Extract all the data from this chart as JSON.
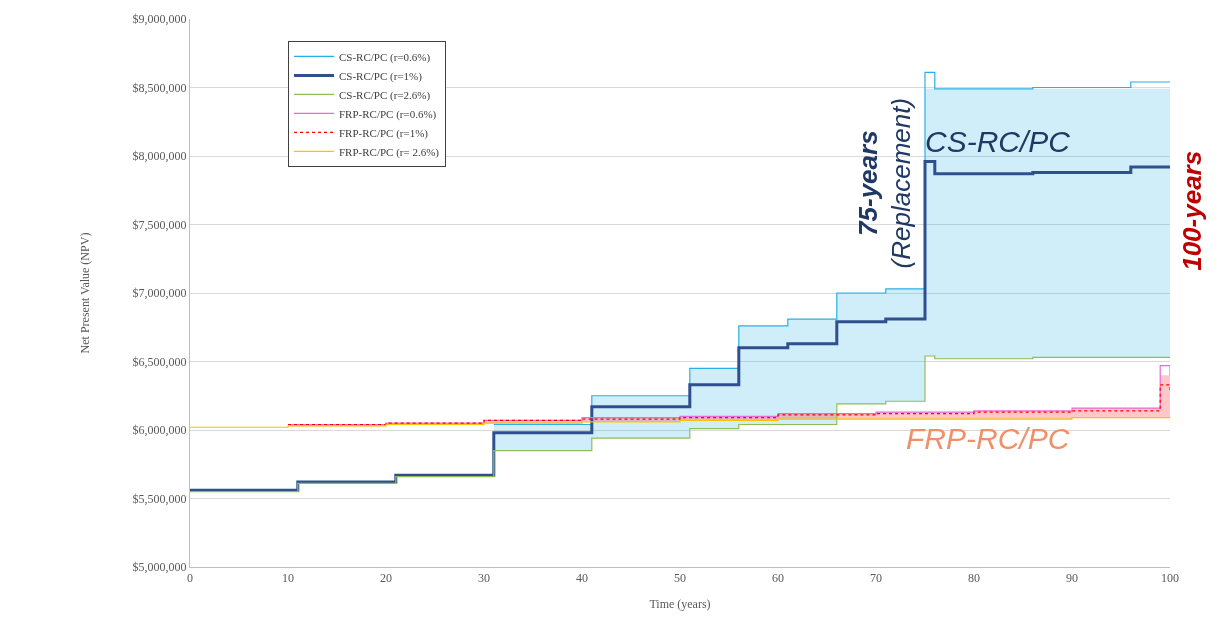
{
  "chart_data": {
    "type": "step",
    "xlabel": "Time (years)",
    "ylabel": "Net Present Value (NPV)",
    "xlim": [
      0,
      100
    ],
    "xticks": [
      0,
      10,
      20,
      30,
      40,
      50,
      60,
      70,
      80,
      90,
      100
    ],
    "ylim": [
      5000000,
      9000000
    ],
    "yticks": [
      {
        "value": 5000000,
        "label": "$5,000,000"
      },
      {
        "value": 5500000,
        "label": "$5,500,000"
      },
      {
        "value": 6000000,
        "label": "$6,000,000"
      },
      {
        "value": 6500000,
        "label": "$6,500,000"
      },
      {
        "value": 7000000,
        "label": "$7,000,000"
      },
      {
        "value": 7500000,
        "label": "$7,500,000"
      },
      {
        "value": 8000000,
        "label": "$8,000,000"
      },
      {
        "value": 8500000,
        "label": "$8,500,000"
      },
      {
        "value": 9000000,
        "label": "$9,000,000"
      }
    ],
    "grid": "y",
    "legend": "top left",
    "marker": "none",
    "line_style": "solid",
    "series": [
      {
        "name": "CS-RC/PC (r=0.6%)",
        "color": "#2ab0e8",
        "x": [
          0,
          11,
          21,
          31,
          41,
          51,
          56,
          61,
          66,
          71,
          75,
          76,
          86,
          96,
          100
        ],
        "values": [
          null,
          null,
          null,
          6040000,
          6250000,
          6450000,
          6760000,
          6810000,
          7000000,
          7030000,
          8610000,
          8490000,
          8500000,
          8540000,
          8540000
        ],
        "lower": [
          5550000,
          5610000,
          5660000,
          5850000,
          5940000,
          6010000,
          6040000,
          6040000,
          6190000,
          6210000,
          6540000,
          6520000,
          6530000,
          6530000,
          6530000
        ],
        "upper": [
          5560000,
          5620000,
          5670000,
          6040000,
          6250000,
          6450000,
          6760000,
          6810000,
          7000000,
          7030000,
          8490000,
          8490000,
          8490000,
          8490000,
          8490000
        ]
      },
      {
        "name": "CS-RC/PC (r=1%)",
        "color": "#2f4f8f",
        "x": [
          0,
          11,
          21,
          31,
          41,
          51,
          56,
          61,
          66,
          71,
          75,
          76,
          86,
          96,
          100
        ],
        "values": [
          5560000,
          5620000,
          5670000,
          5980000,
          6170000,
          6330000,
          6600000,
          6630000,
          6790000,
          6810000,
          7960000,
          7870000,
          7880000,
          7920000,
          7920000
        ]
      },
      {
        "name": "CS-RC/PC (r=2.6%)",
        "color": "#8cc152",
        "x": [
          0,
          11,
          21,
          31,
          41,
          51,
          56,
          61,
          66,
          71,
          75,
          76,
          86,
          96,
          100
        ],
        "values": [
          5550000,
          5610000,
          5660000,
          5850000,
          5940000,
          6010000,
          6040000,
          6040000,
          6190000,
          6210000,
          6540000,
          6520000,
          6530000,
          6530000,
          6530000
        ]
      },
      {
        "name": "FRP-RC/PC (r=0.6%)",
        "color": "#f066d8",
        "x": [
          10,
          20,
          30,
          40,
          50,
          60,
          70,
          80,
          90,
          99,
          100
        ],
        "values": [
          6040000,
          6050000,
          6070000,
          6090000,
          6100000,
          6120000,
          6130000,
          6140000,
          6160000,
          6470000,
          6400000
        ]
      },
      {
        "name": "FRP-RC/PC (r=1%)",
        "color": "#ff0000",
        "line_style": "dotted",
        "x": [
          10,
          20,
          30,
          40,
          50,
          60,
          70,
          80,
          90,
          99,
          100
        ],
        "values": [
          6040000,
          6050000,
          6070000,
          6080000,
          6090000,
          6110000,
          6120000,
          6130000,
          6140000,
          6330000,
          6290000
        ],
        "lower": [
          6030000,
          6040000,
          6050000,
          6060000,
          6070000,
          6080000,
          6080000,
          6080000,
          6090000,
          6090000,
          6090000
        ],
        "upper": [
          6040000,
          6050000,
          6070000,
          6090000,
          6100000,
          6120000,
          6130000,
          6140000,
          6160000,
          6400000,
          6400000
        ]
      },
      {
        "name": "FRP-RC/PC (r= 2.6%)",
        "color": "#ffc000",
        "x": [
          0,
          10,
          20,
          30,
          40,
          50,
          60,
          70,
          80,
          90,
          99,
          100
        ],
        "values": [
          6020000,
          6030000,
          6040000,
          6050000,
          6060000,
          6070000,
          6080000,
          6080000,
          6080000,
          6090000,
          6090000,
          6090000
        ]
      }
    ],
    "annotations": [
      {
        "text": "75-years\n(Replacement)",
        "x": 75,
        "y": 7800000
      },
      {
        "text": "100-years",
        "x": 100,
        "y": 7600000
      },
      "CS-RC/PC",
      "FRP-RC/PC"
    ]
  }
}
